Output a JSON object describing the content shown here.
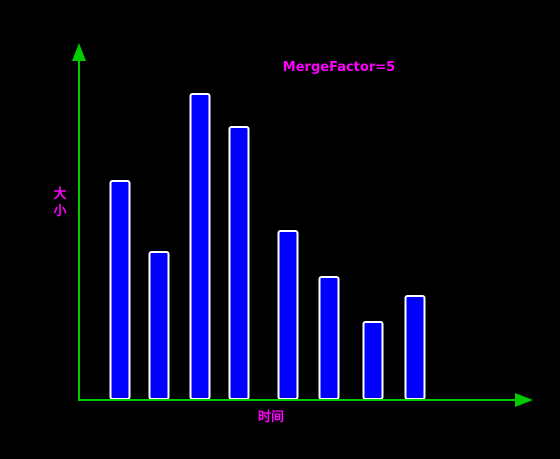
{
  "chart_data": {
    "type": "bar",
    "annotation": "MergeFactor=5",
    "xlabel": "时间",
    "ylabel": "大小",
    "values": [
      218,
      147,
      305,
      272,
      168,
      122,
      77,
      103
    ],
    "ylim": [
      0,
      355
    ],
    "grid": false,
    "legend": "none"
  },
  "colors": {
    "background": "#000000",
    "axis": "#00cc00",
    "bar_fill": "#0000ff",
    "bar_stroke": "#ffffff",
    "text": "#ff00ff"
  }
}
